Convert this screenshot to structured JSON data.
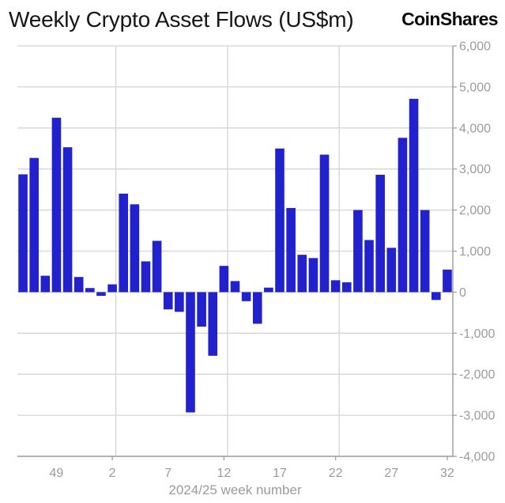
{
  "header": {
    "title": "Weekly Crypto Asset Flows (US$m)",
    "brand": "CoinShares"
  },
  "chart_data": {
    "type": "bar",
    "title": "Weekly Crypto Asset Flows (US$m)",
    "xlabel": "2024/25 week number",
    "ylabel": "",
    "categories": [
      46,
      47,
      48,
      49,
      50,
      51,
      52,
      1,
      2,
      3,
      4,
      5,
      6,
      7,
      8,
      9,
      10,
      11,
      12,
      13,
      14,
      15,
      16,
      17,
      18,
      19,
      20,
      21,
      22,
      23,
      24,
      25,
      26,
      27,
      28,
      29,
      30,
      31,
      32
    ],
    "values": [
      2870,
      3270,
      400,
      4250,
      3530,
      370,
      100,
      -90,
      190,
      2400,
      2140,
      750,
      1250,
      -420,
      -480,
      -2930,
      -840,
      -1550,
      640,
      270,
      -220,
      -770,
      110,
      3500,
      2050,
      910,
      830,
      3350,
      290,
      240,
      2000,
      1270,
      2860,
      1080,
      3760,
      4710,
      2000,
      -190,
      550
    ],
    "ylim": [
      -4000,
      6000
    ],
    "y_ticks": [
      {
        "value": 6000,
        "label": "6,000"
      },
      {
        "value": 5000,
        "label": "5,000"
      },
      {
        "value": 4000,
        "label": "4,000"
      },
      {
        "value": 3000,
        "label": "3,000"
      },
      {
        "value": 2000,
        "label": "2,000"
      },
      {
        "value": 1000,
        "label": "1,000"
      },
      {
        "value": 0,
        "label": "0"
      },
      {
        "value": -1000,
        "label": "-1,000"
      },
      {
        "value": -2000,
        "label": "-2,000"
      },
      {
        "value": -3000,
        "label": "-3,000"
      },
      {
        "value": -4000,
        "label": "-4,000"
      }
    ],
    "x_ticks": [
      {
        "week": 49,
        "label": "49"
      },
      {
        "week": 2,
        "label": "2"
      },
      {
        "week": 7,
        "label": "7"
      },
      {
        "week": 12,
        "label": "12"
      },
      {
        "week": 17,
        "label": "17"
      },
      {
        "week": 22,
        "label": "22"
      },
      {
        "week": 27,
        "label": "27"
      },
      {
        "week": 32,
        "label": "32"
      }
    ],
    "x_gridline_weeks": [
      2,
      12,
      22
    ],
    "x_bottom_tick_weeks": [
      2,
      12,
      22,
      32
    ],
    "grid": true,
    "legend_position": "none",
    "colors": {
      "bar": "#2121ce",
      "gridline": "#d4d4d4",
      "axis_line": "#9a9a9a",
      "tick_text": "#9b9b9b"
    }
  }
}
